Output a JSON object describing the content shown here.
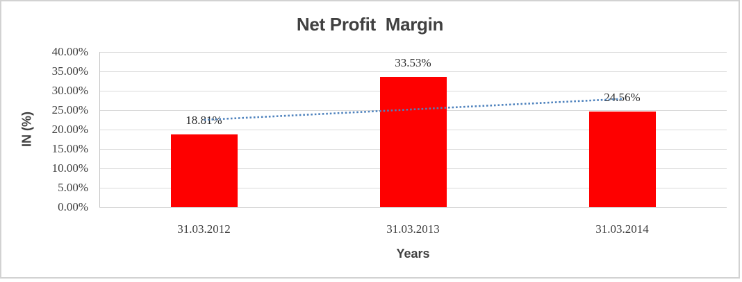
{
  "window": {
    "background_color": "#ffffff",
    "border_color": "#d2d2d2"
  },
  "chart_data": {
    "type": "bar",
    "title": "Net Profit  Margin",
    "title_color": "#404040",
    "categories": [
      "31.03.2012",
      "31.03.2013",
      "31.03.2014"
    ],
    "values": [
      18.81,
      33.53,
      24.56
    ],
    "value_labels": [
      "18.81%",
      "33.53%",
      "24.56%"
    ],
    "xlabel": "Years",
    "ylabel": "IN (%)",
    "ylim": [
      0,
      40
    ],
    "ytick_step": 5,
    "yticks": [
      "0.00%",
      "5.00%",
      "10.00%",
      "15.00%",
      "20.00%",
      "25.00%",
      "30.00%",
      "35.00%",
      "40.00%"
    ],
    "grid": true,
    "legend": "none",
    "bar_color": "#fe0000",
    "gridline_color": "#d9d9d9",
    "axis_line_color": "#c6c6c6",
    "tick_text_color": "#3d3d3d",
    "trendline": {
      "type": "linear",
      "style": "dotted",
      "color": "#4e82bd",
      "start_value": 22.5,
      "end_value": 27.9
    }
  }
}
